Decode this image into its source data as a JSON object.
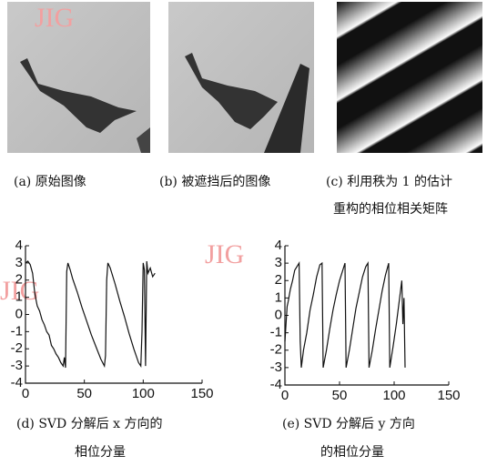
{
  "watermark": "JIG",
  "images": [
    {
      "caption": [
        "(a) 原始图像"
      ]
    },
    {
      "caption": [
        "(b) 被遮挡后的图像"
      ]
    },
    {
      "caption": [
        "(c) 利用秩为 1 的估计",
        "重构的相位相关矩阵"
      ]
    }
  ],
  "chart_data": [
    {
      "type": "line",
      "caption": [
        "(d) SVD 分解后 x 方向的",
        "相位分量"
      ],
      "color": "#111111",
      "xlim": [
        0,
        150
      ],
      "ylim": [
        -4,
        4
      ],
      "xticks": [
        0,
        50,
        100,
        150
      ],
      "yticks": [
        -4,
        -3,
        -2,
        -1,
        0,
        1,
        2,
        3,
        4
      ],
      "x": [
        0,
        2,
        4,
        6,
        8,
        10,
        12,
        14,
        16,
        18,
        20,
        22,
        24,
        26,
        28,
        30,
        32,
        33,
        34,
        35,
        36,
        38,
        40,
        44,
        48,
        52,
        56,
        60,
        64,
        67,
        68,
        69,
        70,
        72,
        76,
        80,
        84,
        88,
        92,
        96,
        98,
        99,
        100,
        101,
        102,
        103,
        104,
        106,
        108,
        110
      ],
      "values": [
        3,
        3.1,
        2.9,
        2.4,
        1.2,
        0.5,
        0.2,
        -0.3,
        -0.6,
        -1.0,
        -1.2,
        -1.8,
        -2.0,
        -2.3,
        -2.5,
        -2.8,
        -3.0,
        -2.5,
        -3.1,
        2.5,
        3.0,
        2.6,
        2.1,
        1.3,
        0.4,
        -0.4,
        -1.2,
        -1.9,
        -2.6,
        -3.0,
        -2.4,
        2.0,
        3.0,
        2.7,
        1.8,
        0.8,
        -0.1,
        -1.1,
        -2.0,
        -2.8,
        -3.0,
        -1.0,
        3.0,
        2.6,
        -3.0,
        3.1,
        2.4,
        2.7,
        2.2,
        2.4
      ]
    },
    {
      "type": "line",
      "caption": [
        "(e) SVD 分解后 y 方向",
        "的相位分量"
      ],
      "color": "#111111",
      "xlim": [
        0,
        150
      ],
      "ylim": [
        -4,
        4
      ],
      "xticks": [
        0,
        50,
        100,
        150
      ],
      "yticks": [
        -4,
        -3,
        -2,
        -1,
        0,
        1,
        2,
        3,
        4
      ],
      "x": [
        0,
        1,
        2,
        3,
        5,
        7,
        9,
        11,
        13,
        14,
        15,
        17,
        20,
        23,
        26,
        29,
        32,
        34,
        35,
        38,
        41,
        44,
        47,
        50,
        53,
        55,
        56,
        59,
        62,
        65,
        68,
        71,
        74,
        76,
        77,
        80,
        83,
        86,
        89,
        92,
        95,
        96,
        99,
        102,
        105,
        107,
        108,
        109,
        110
      ],
      "values": [
        -1.5,
        -0.5,
        0.5,
        0.8,
        1.5,
        2.0,
        2.6,
        2.8,
        3.0,
        -1.5,
        -3.0,
        -2.0,
        -1.0,
        0.3,
        1.2,
        2.2,
        2.9,
        3.0,
        -3.0,
        -2.0,
        -0.8,
        0.3,
        1.2,
        2.0,
        2.6,
        3.0,
        -3.0,
        -2.0,
        -0.8,
        0.4,
        1.3,
        2.2,
        2.8,
        3.0,
        -3.0,
        -2.0,
        -0.8,
        0.3,
        1.4,
        2.3,
        3.0,
        -3.0,
        -1.8,
        -0.5,
        1.0,
        2.0,
        -0.5,
        1.0,
        -3.0
      ]
    }
  ]
}
